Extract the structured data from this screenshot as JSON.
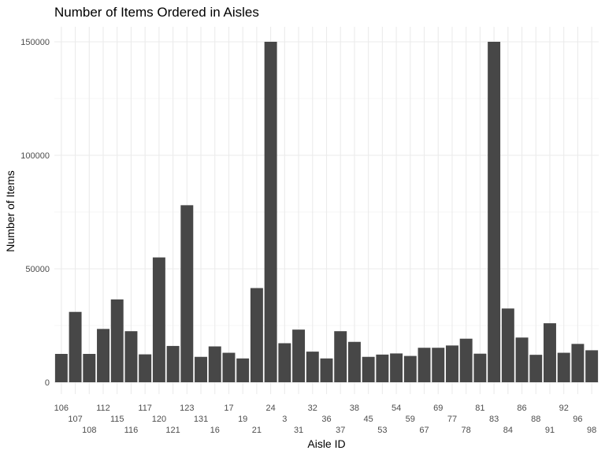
{
  "chart_data": {
    "type": "bar",
    "title": "Number of Items Ordered in Aisles",
    "xlabel": "Aisle ID",
    "ylabel": "Number of Items",
    "ylim": [
      0,
      155000
    ],
    "yticks": [
      0,
      50000,
      100000,
      150000
    ],
    "ytick_labels": [
      "0",
      "50000",
      "100000",
      "150000"
    ],
    "grid": true,
    "legend": "none",
    "bar_color": "#474747",
    "grid_color": "#ebebeb",
    "categories": [
      "106",
      "107",
      "108",
      "112",
      "115",
      "116",
      "117",
      "120",
      "121",
      "123",
      "131",
      "16",
      "17",
      "19",
      "21",
      "24",
      "3",
      "31",
      "32",
      "36",
      "37",
      "38",
      "45",
      "53",
      "54",
      "59",
      "67",
      "69",
      "77",
      "78",
      "81",
      "83",
      "84",
      "86",
      "88",
      "91",
      "92",
      "96",
      "98"
    ],
    "values": [
      12500,
      31000,
      12500,
      23500,
      36500,
      22500,
      12300,
      55000,
      16000,
      78000,
      11200,
      15800,
      13000,
      10500,
      41500,
      150000,
      17200,
      23200,
      13500,
      10500,
      22500,
      17800,
      11200,
      12200,
      12700,
      11600,
      15200,
      15200,
      16200,
      19200,
      12600,
      150000,
      32500,
      19700,
      12100,
      26000,
      13000,
      16900,
      14100
    ]
  }
}
